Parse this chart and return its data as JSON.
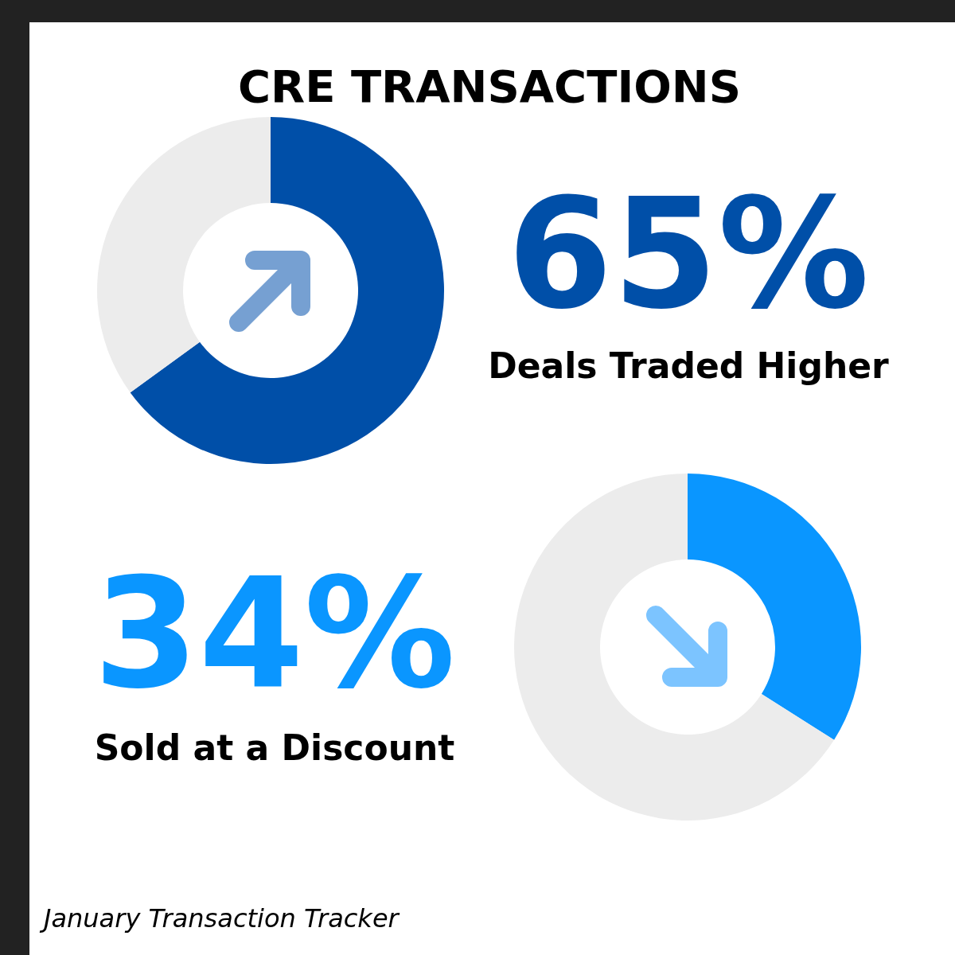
{
  "chart_data": [
    {
      "type": "donut",
      "title": "CRE TRANSACTIONS",
      "categories": [
        null,
        null
      ],
      "values": [
        65,
        35
      ],
      "colors": [
        "#004fa8",
        "#ececec"
      ],
      "annotations": [
        "65%",
        "Deals Traded Higher"
      ]
    },
    {
      "type": "donut",
      "categories": [
        null,
        null
      ],
      "values": [
        34,
        66
      ],
      "colors": [
        "#0a96ff",
        "#ececec"
      ],
      "annotations": [
        "34%",
        "Sold at a Discount",
        "January Transaction Tracker"
      ]
    }
  ]
}
